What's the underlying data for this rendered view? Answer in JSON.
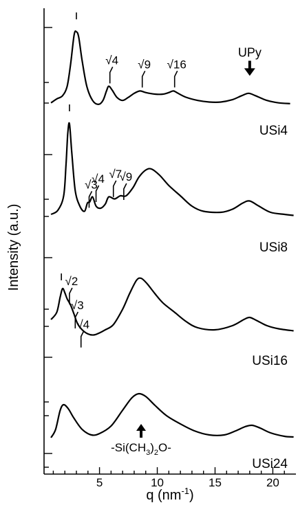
{
  "chart_data": {
    "type": "line",
    "title": "",
    "xlabel": "q (nm",
    "xlabel_sup": "-1",
    "xlabel_end": ")",
    "ylabel": "Intensity (a.u.)",
    "xlim": [
      0.2,
      22
    ],
    "xticks": [
      "5",
      "10",
      "15",
      "20"
    ],
    "grid": false,
    "legend": "none (series named by labels at right of each curve)",
    "series": [
      {
        "name": "USi4",
        "points": [
          [
            0.8,
            0.09
          ],
          [
            1.3,
            0.14
          ],
          [
            1.8,
            0.18
          ],
          [
            2.2,
            0.3
          ],
          [
            2.5,
            0.58
          ],
          [
            2.8,
            0.95
          ],
          [
            3.0,
            0.99
          ],
          [
            3.2,
            0.92
          ],
          [
            3.5,
            0.62
          ],
          [
            3.9,
            0.3
          ],
          [
            4.4,
            0.12
          ],
          [
            4.9,
            0.07
          ],
          [
            5.3,
            0.12
          ],
          [
            5.6,
            0.24
          ],
          [
            5.8,
            0.3
          ],
          [
            6.1,
            0.25
          ],
          [
            6.5,
            0.16
          ],
          [
            7.0,
            0.12
          ],
          [
            7.5,
            0.16
          ],
          [
            8.0,
            0.21
          ],
          [
            8.5,
            0.24
          ],
          [
            9.0,
            0.22
          ],
          [
            9.8,
            0.2
          ],
          [
            10.5,
            0.2
          ],
          [
            11.0,
            0.22
          ],
          [
            11.4,
            0.24
          ],
          [
            11.8,
            0.21
          ],
          [
            12.5,
            0.16
          ],
          [
            13.5,
            0.12
          ],
          [
            14.5,
            0.1
          ],
          [
            15.5,
            0.1
          ],
          [
            16.5,
            0.13
          ],
          [
            17.3,
            0.18
          ],
          [
            17.9,
            0.21
          ],
          [
            18.5,
            0.18
          ],
          [
            19.5,
            0.12
          ],
          [
            20.5,
            0.09
          ],
          [
            21.5,
            0.08
          ]
        ]
      },
      {
        "name": "USi8",
        "points": [
          [
            0.8,
            0.12
          ],
          [
            1.4,
            0.16
          ],
          [
            1.9,
            0.3
          ],
          [
            2.1,
            0.6
          ],
          [
            2.25,
            0.9
          ],
          [
            2.4,
            1.0
          ],
          [
            2.6,
            0.72
          ],
          [
            2.9,
            0.35
          ],
          [
            3.3,
            0.2
          ],
          [
            3.7,
            0.15
          ],
          [
            3.95,
            0.23
          ],
          [
            4.15,
            0.24
          ],
          [
            4.4,
            0.29
          ],
          [
            4.7,
            0.2
          ],
          [
            5.1,
            0.18
          ],
          [
            5.5,
            0.22
          ],
          [
            5.8,
            0.29
          ],
          [
            6.3,
            0.27
          ],
          [
            6.8,
            0.3
          ],
          [
            7.3,
            0.3
          ],
          [
            7.9,
            0.38
          ],
          [
            8.4,
            0.48
          ],
          [
            9.0,
            0.55
          ],
          [
            9.5,
            0.56
          ],
          [
            10.2,
            0.5
          ],
          [
            11.0,
            0.4
          ],
          [
            12.0,
            0.3
          ],
          [
            13.0,
            0.2
          ],
          [
            14.0,
            0.15
          ],
          [
            15.5,
            0.14
          ],
          [
            16.5,
            0.17
          ],
          [
            17.4,
            0.23
          ],
          [
            18.0,
            0.25
          ],
          [
            18.8,
            0.2
          ],
          [
            19.8,
            0.14
          ],
          [
            21.0,
            0.12
          ],
          [
            21.8,
            0.11
          ]
        ]
      },
      {
        "name": "USi16",
        "points": [
          [
            0.8,
            0.2
          ],
          [
            1.3,
            0.27
          ],
          [
            1.6,
            0.42
          ],
          [
            1.8,
            0.5
          ],
          [
            2.0,
            0.46
          ],
          [
            2.2,
            0.4
          ],
          [
            2.5,
            0.34
          ],
          [
            2.8,
            0.25
          ],
          [
            3.1,
            0.16
          ],
          [
            3.5,
            0.1
          ],
          [
            4.0,
            0.06
          ],
          [
            4.5,
            0.05
          ],
          [
            5.0,
            0.07
          ],
          [
            5.5,
            0.1
          ],
          [
            6.2,
            0.15
          ],
          [
            7.0,
            0.3
          ],
          [
            7.6,
            0.45
          ],
          [
            8.2,
            0.58
          ],
          [
            8.6,
            0.6
          ],
          [
            9.1,
            0.55
          ],
          [
            9.8,
            0.45
          ],
          [
            10.5,
            0.36
          ],
          [
            11.5,
            0.27
          ],
          [
            12.5,
            0.18
          ],
          [
            13.5,
            0.12
          ],
          [
            15.0,
            0.1
          ],
          [
            16.5,
            0.14
          ],
          [
            17.5,
            0.2
          ],
          [
            18.0,
            0.22
          ],
          [
            18.6,
            0.19
          ],
          [
            19.5,
            0.14
          ],
          [
            20.5,
            0.11
          ],
          [
            21.8,
            0.09
          ]
        ]
      },
      {
        "name": "USi24",
        "points": [
          [
            0.8,
            0.08
          ],
          [
            1.2,
            0.2
          ],
          [
            1.6,
            0.48
          ],
          [
            1.9,
            0.56
          ],
          [
            2.3,
            0.5
          ],
          [
            2.8,
            0.36
          ],
          [
            3.5,
            0.2
          ],
          [
            4.3,
            0.12
          ],
          [
            5.0,
            0.14
          ],
          [
            6.0,
            0.25
          ],
          [
            7.0,
            0.48
          ],
          [
            7.8,
            0.66
          ],
          [
            8.4,
            0.72
          ],
          [
            9.0,
            0.68
          ],
          [
            9.8,
            0.55
          ],
          [
            10.8,
            0.4
          ],
          [
            12.0,
            0.28
          ],
          [
            13.2,
            0.18
          ],
          [
            14.5,
            0.12
          ],
          [
            15.8,
            0.12
          ],
          [
            16.8,
            0.18
          ],
          [
            17.6,
            0.24
          ],
          [
            18.2,
            0.26
          ],
          [
            18.9,
            0.22
          ],
          [
            19.8,
            0.15
          ],
          [
            21.0,
            0.1
          ],
          [
            21.8,
            0.09
          ]
        ]
      }
    ],
    "annotations": [
      {
        "series": 0,
        "text": "I",
        "q": 3.0
      },
      {
        "series": 0,
        "text": "√4",
        "q": 5.9
      },
      {
        "series": 0,
        "text": "√9",
        "q": 8.7
      },
      {
        "series": 0,
        "text": "√16",
        "q": 11.5
      },
      {
        "series": 0,
        "text": "UPy",
        "q": 18.0,
        "arrow": "down"
      },
      {
        "series": 1,
        "text": "I",
        "q": 2.4
      },
      {
        "series": 1,
        "text": "√3",
        "q": 4.1
      },
      {
        "series": 1,
        "text": "√4",
        "q": 4.7
      },
      {
        "series": 1,
        "text": "√7",
        "q": 6.2
      },
      {
        "series": 1,
        "text": "√9",
        "q": 7.1
      },
      {
        "series": 2,
        "text": "I",
        "q": 1.7
      },
      {
        "series": 2,
        "text": "√2",
        "q": 2.4
      },
      {
        "series": 2,
        "text": "√3",
        "q": 2.9
      },
      {
        "series": 2,
        "text": "√4",
        "q": 3.4
      },
      {
        "series": 3,
        "text": "-Si(CH",
        "sub": "3",
        "tail": ")",
        "sub2": "2",
        "tail2": "O-",
        "q": 8.6,
        "arrow": "up"
      }
    ]
  }
}
